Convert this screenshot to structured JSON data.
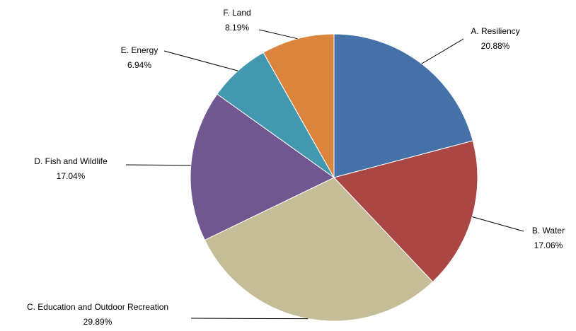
{
  "chart_data": {
    "type": "pie",
    "categories": [
      "A. Resiliency",
      "B. Water",
      "C. Education and Outdoor Recreation",
      "D. Fish and Wildlife",
      "E. Energy",
      "F. Land"
    ],
    "values": [
      20.88,
      17.06,
      29.89,
      17.04,
      6.94,
      8.19
    ],
    "value_labels": [
      "20.88%",
      "17.06%",
      "29.89%",
      "17.04%",
      "6.94%",
      "8.19%"
    ],
    "colors": [
      "#4472a8",
      "#aa4644",
      "#c4bd97",
      "#70578f",
      "#4198af",
      "#db843d"
    ]
  }
}
